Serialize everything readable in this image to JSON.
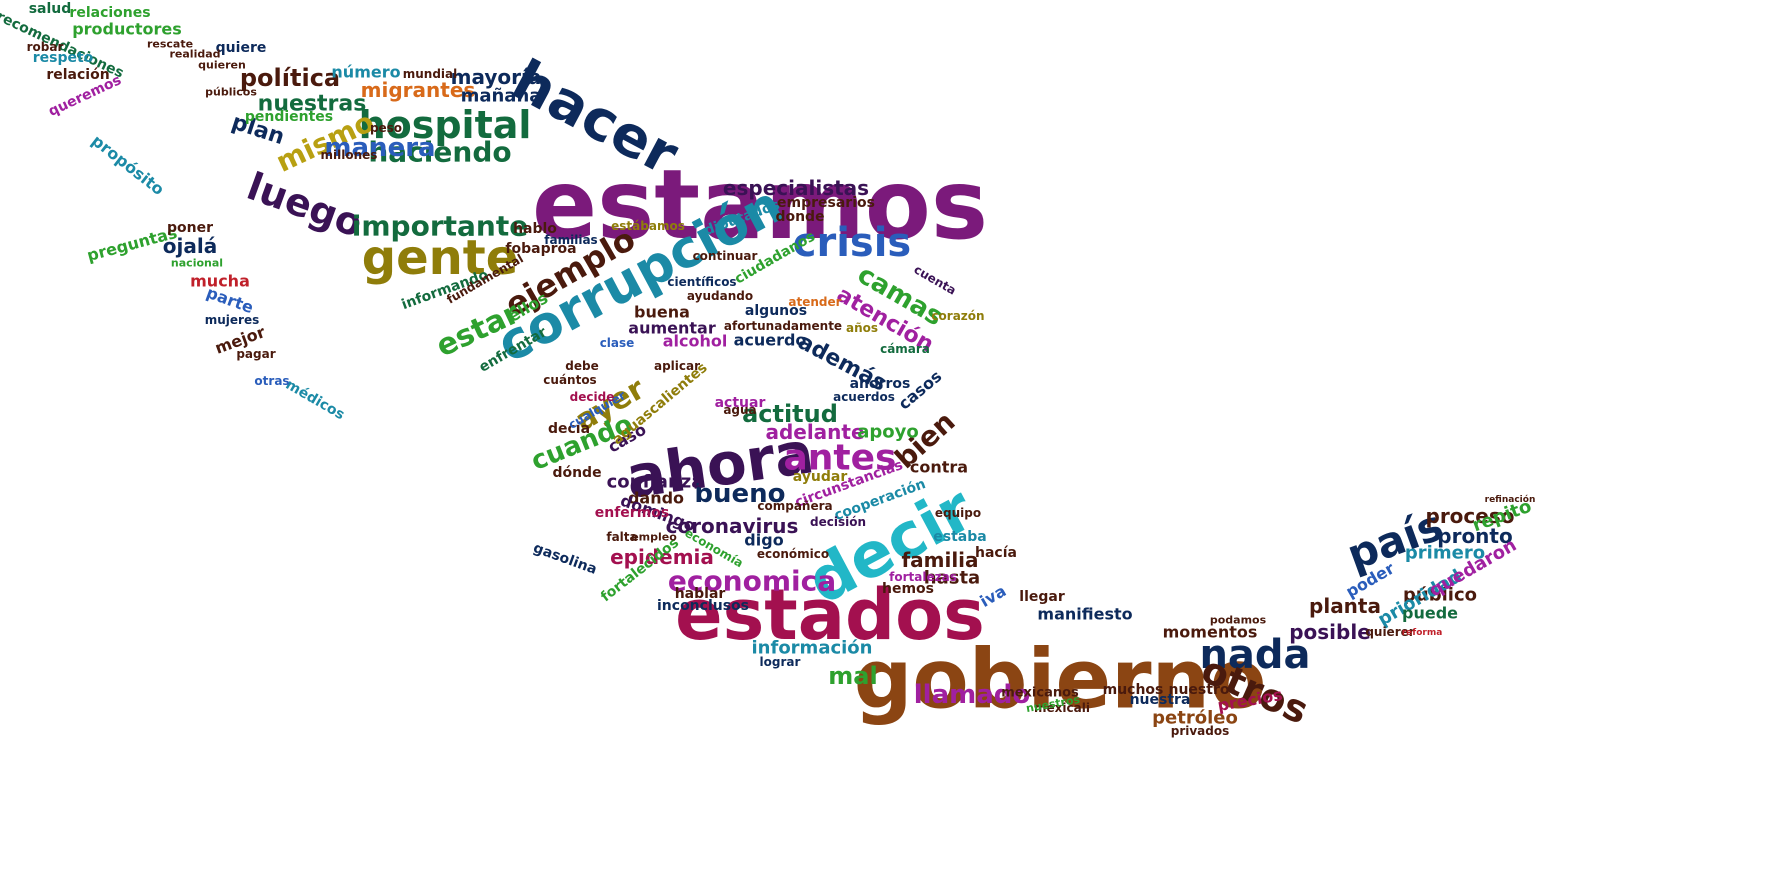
{
  "palette": {
    "purple": "#7b1a7b",
    "maroon": "#a3104f",
    "brown": "#8b4513",
    "olive": "#8f7d0a",
    "darkgreen": "#1e6b3a",
    "navy": "#0d2a5b",
    "teal": "#1b8aa6",
    "blue": "#2a5dbb",
    "green": "#2ea12e",
    "red": "#c0202a",
    "magenta": "#a020a0",
    "darkbrown": "#4a1a0d",
    "cyan": "#22b7c7",
    "orange": "#d86a1a",
    "darkpurple": "#3a1255",
    "gold": "#b8a012",
    "forest": "#136b3e",
    "black": "#1a1a2e"
  },
  "words": [
    {
      "text": "estamos",
      "color": "purple"
    },
    {
      "text": "gobierno",
      "color": "brown"
    },
    {
      "text": "estados",
      "color": "maroon"
    },
    {
      "text": "ahora",
      "color": "darkpurple"
    },
    {
      "text": "corrupción",
      "color": "teal"
    },
    {
      "text": "decir",
      "color": "cyan"
    },
    {
      "text": "hacer",
      "color": "navy"
    },
    {
      "text": "gente",
      "color": "olive"
    },
    {
      "text": "hospital",
      "color": "forest"
    },
    {
      "text": "crisis",
      "color": "blue"
    },
    {
      "text": "país",
      "color": "navy"
    },
    {
      "text": "nada",
      "color": "navy"
    },
    {
      "text": "otros",
      "color": "darkbrown"
    },
    {
      "text": "luego",
      "color": "darkpurple"
    },
    {
      "text": "antes",
      "color": "magenta"
    },
    {
      "text": "ejemplo",
      "color": "darkbrown"
    },
    {
      "text": "importante",
      "color": "forest"
    },
    {
      "text": "haciendo",
      "color": "forest"
    },
    {
      "text": "economica",
      "color": "magenta"
    },
    {
      "text": "estar",
      "color": "green"
    },
    {
      "text": "ayer",
      "color": "olive"
    },
    {
      "text": "mismo",
      "color": "gold"
    },
    {
      "text": "manera",
      "color": "blue"
    },
    {
      "text": "bueno",
      "color": "navy"
    },
    {
      "text": "bien",
      "color": "darkbrown"
    },
    {
      "text": "cuando",
      "color": "green"
    },
    {
      "text": "llamado",
      "color": "magenta"
    },
    {
      "text": "actitud",
      "color": "forest"
    },
    {
      "text": "camas",
      "color": "green"
    },
    {
      "text": "atención",
      "color": "magenta"
    },
    {
      "text": "nuestras",
      "color": "forest"
    },
    {
      "text": "política",
      "color": "darkbrown"
    },
    {
      "text": "migrantes",
      "color": "orange"
    },
    {
      "text": "mayoría",
      "color": "navy"
    },
    {
      "text": "mañana",
      "color": "navy"
    },
    {
      "text": "plan",
      "color": "navy"
    },
    {
      "text": "especialistas",
      "color": "darkpurple"
    },
    {
      "text": "adelante",
      "color": "magenta"
    },
    {
      "text": "apoyo",
      "color": "green"
    },
    {
      "text": "epidemia",
      "color": "maroon"
    },
    {
      "text": "coronavirus",
      "color": "darkpurple"
    },
    {
      "text": "confianza",
      "color": "darkpurple"
    },
    {
      "text": "familia",
      "color": "darkbrown"
    },
    {
      "text": "hasta",
      "color": "darkbrown"
    },
    {
      "text": "además",
      "color": "navy"
    },
    {
      "text": "mal",
      "color": "green"
    },
    {
      "text": "información",
      "color": "teal"
    },
    {
      "text": "posible",
      "color": "darkpurple"
    },
    {
      "text": "proceso",
      "color": "darkbrown"
    },
    {
      "text": "pronto",
      "color": "navy"
    },
    {
      "text": "primero",
      "color": "teal"
    },
    {
      "text": "planta",
      "color": "darkbrown"
    },
    {
      "text": "público",
      "color": "darkbrown"
    },
    {
      "text": "prioridad",
      "color": "teal"
    },
    {
      "text": "repito",
      "color": "green"
    },
    {
      "text": "quedaron",
      "color": "magenta"
    },
    {
      "text": "poder",
      "color": "blue"
    },
    {
      "text": "puede",
      "color": "forest"
    },
    {
      "text": "momentos",
      "color": "darkbrown"
    },
    {
      "text": "petróleo",
      "color": "brown"
    },
    {
      "text": "precios",
      "color": "maroon"
    },
    {
      "text": "nuestra",
      "color": "navy"
    },
    {
      "text": "muchos",
      "color": "darkbrown"
    },
    {
      "text": "nuestro",
      "color": "darkbrown"
    },
    {
      "text": "manifiesto",
      "color": "navy"
    },
    {
      "text": "mexicanos",
      "color": "darkbrown"
    },
    {
      "text": "ojalá",
      "color": "navy"
    },
    {
      "text": "mucha",
      "color": "red"
    },
    {
      "text": "parte",
      "color": "blue"
    },
    {
      "text": "mejor",
      "color": "darkbrown"
    },
    {
      "text": "médicos",
      "color": "teal"
    },
    {
      "text": "preguntas",
      "color": "green"
    },
    {
      "text": "poner",
      "color": "darkbrown"
    },
    {
      "text": "propósito",
      "color": "teal"
    },
    {
      "text": "productores",
      "color": "green"
    },
    {
      "text": "relaciones",
      "color": "green"
    },
    {
      "text": "recomendaciones",
      "color": "forest"
    },
    {
      "text": "salud",
      "color": "forest"
    },
    {
      "text": "respeto",
      "color": "teal"
    },
    {
      "text": "relación",
      "color": "darkbrown"
    },
    {
      "text": "queremos",
      "color": "magenta"
    },
    {
      "text": "robar",
      "color": "darkbrown"
    },
    {
      "text": "número",
      "color": "teal"
    },
    {
      "text": "alcohol",
      "color": "magenta"
    },
    {
      "text": "acuerdo",
      "color": "navy"
    },
    {
      "text": "buena",
      "color": "darkbrown"
    },
    {
      "text": "aumentar",
      "color": "darkpurple"
    },
    {
      "text": "contra",
      "color": "darkbrown"
    },
    {
      "text": "dando",
      "color": "darkbrown"
    },
    {
      "text": "domingo",
      "color": "darkpurple"
    },
    {
      "text": "digo",
      "color": "navy"
    },
    {
      "text": "estaba",
      "color": "teal"
    },
    {
      "text": "enfermos",
      "color": "maroon"
    },
    {
      "text": "hablar",
      "color": "darkbrown"
    },
    {
      "text": "hemos",
      "color": "darkbrown"
    },
    {
      "text": "casos",
      "color": "navy"
    },
    {
      "text": "ahorros",
      "color": "navy"
    },
    {
      "text": "cooperación",
      "color": "teal"
    },
    {
      "text": "circunstancias",
      "color": "magenta"
    },
    {
      "text": "ayudar",
      "color": "olive"
    },
    {
      "text": "iva",
      "color": "blue"
    },
    {
      "text": "llegar",
      "color": "darkbrown"
    },
    {
      "text": "hacía",
      "color": "darkbrown"
    },
    {
      "text": "inconclusos",
      "color": "navy"
    },
    {
      "text": "fortalecidos",
      "color": "green"
    },
    {
      "text": "gasolina",
      "color": "navy"
    },
    {
      "text": "pendientes",
      "color": "green"
    },
    {
      "text": "quiere",
      "color": "navy"
    },
    {
      "text": "algunos",
      "color": "navy"
    },
    {
      "text": "ciudadanos",
      "color": "green"
    },
    {
      "text": "empresarios",
      "color": "darkbrown"
    },
    {
      "text": "fobaproa",
      "color": "darkbrown"
    },
    {
      "text": "hablo",
      "color": "darkbrown"
    },
    {
      "text": "diputados",
      "color": "teal"
    },
    {
      "text": "donde",
      "color": "darkbrown"
    },
    {
      "text": "mundial",
      "color": "darkbrown"
    },
    {
      "text": "millones",
      "color": "darkbrown"
    },
    {
      "text": "dónde",
      "color": "darkbrown"
    },
    {
      "text": "caso",
      "color": "darkpurple"
    },
    {
      "text": "decía",
      "color": "darkbrown"
    },
    {
      "text": "clase",
      "color": "blue"
    },
    {
      "text": "ellos",
      "color": "green"
    },
    {
      "text": "enfrentar",
      "color": "forest"
    },
    {
      "text": "aguascalientes",
      "color": "olive"
    },
    {
      "text": "afortunadamente",
      "color": "darkbrown"
    },
    {
      "text": "cámara",
      "color": "forest"
    },
    {
      "text": "corazón",
      "color": "olive"
    },
    {
      "text": "años",
      "color": "olive"
    },
    {
      "text": "podamos",
      "color": "darkbrown"
    },
    {
      "text": "mexicali",
      "color": "darkbrown"
    },
    {
      "text": "nuestros",
      "color": "green"
    },
    {
      "text": "lograr",
      "color": "navy"
    },
    {
      "text": "privados",
      "color": "darkbrown"
    },
    {
      "text": "quierer",
      "color": "darkbrown"
    },
    {
      "text": "decisión",
      "color": "darkpurple"
    },
    {
      "text": "actuar",
      "color": "magenta"
    },
    {
      "text": "pagar",
      "color": "darkbrown"
    },
    {
      "text": "mujeres",
      "color": "navy"
    },
    {
      "text": "otras",
      "color": "blue"
    },
    {
      "text": "nacional",
      "color": "green"
    },
    {
      "text": "realidad",
      "color": "darkbrown"
    },
    {
      "text": "rescate",
      "color": "darkbrown"
    },
    {
      "text": "quieren",
      "color": "darkbrown"
    },
    {
      "text": "públicos",
      "color": "darkbrown"
    },
    {
      "text": "peso",
      "color": "darkbrown"
    },
    {
      "text": "informando",
      "color": "forest"
    },
    {
      "text": "fundamental",
      "color": "darkbrown"
    },
    {
      "text": "acuerdos",
      "color": "navy"
    },
    {
      "text": "agua",
      "color": "darkbrown"
    },
    {
      "text": "continuar",
      "color": "darkbrown"
    },
    {
      "text": "científicos",
      "color": "navy"
    },
    {
      "text": "ayudando",
      "color": "darkbrown"
    },
    {
      "text": "atender",
      "color": "orange"
    },
    {
      "text": "familias",
      "color": "navy"
    },
    {
      "text": "estábamos",
      "color": "olive"
    },
    {
      "text": "cuántos",
      "color": "darkbrown"
    },
    {
      "text": "debe",
      "color": "darkbrown"
    },
    {
      "text": "cualquier",
      "color": "blue"
    },
    {
      "text": "decide",
      "color": "maroon"
    },
    {
      "text": "aplicar",
      "color": "darkbrown"
    },
    {
      "text": "equipo",
      "color": "darkbrown"
    },
    {
      "text": "cuenta",
      "color": "darkpurple"
    },
    {
      "text": "empleo",
      "color": "darkbrown"
    },
    {
      "text": "economía",
      "color": "green"
    },
    {
      "text": "falta",
      "color": "darkbrown"
    },
    {
      "text": "compañera",
      "color": "darkbrown"
    },
    {
      "text": "económico",
      "color": "darkbrown"
    },
    {
      "text": "fortalezas",
      "color": "magenta"
    },
    {
      "text": "reforma",
      "color": "red"
    },
    {
      "text": "refinación",
      "color": "darkbrown"
    }
  ]
}
